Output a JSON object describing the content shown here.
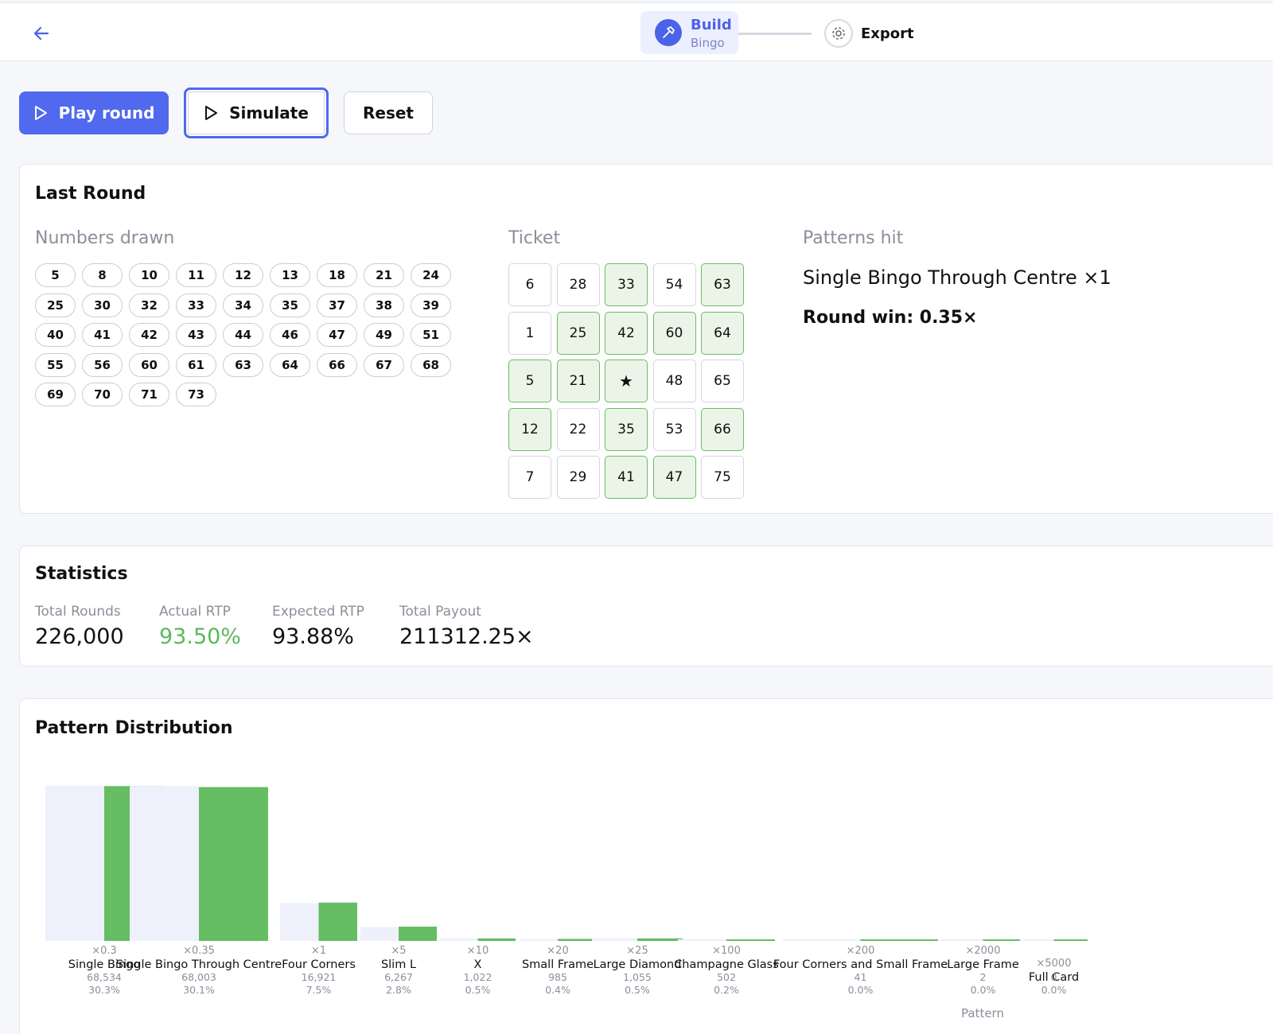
{
  "header": {
    "steps": [
      {
        "label": "Build",
        "sub": "Bingo",
        "active": true,
        "icon": "hammer-icon"
      },
      {
        "label": "Export",
        "active": false,
        "icon": "gear-icon"
      }
    ]
  },
  "actions": {
    "play_label": "Play round",
    "simulate_label": "Simulate",
    "reset_label": "Reset"
  },
  "last_round": {
    "title": "Last Round",
    "numbers_label": "Numbers drawn",
    "numbers": [
      5,
      8,
      10,
      11,
      12,
      13,
      18,
      21,
      24,
      25,
      30,
      32,
      33,
      34,
      35,
      37,
      38,
      39,
      40,
      41,
      42,
      43,
      44,
      46,
      47,
      49,
      51,
      55,
      56,
      60,
      61,
      63,
      64,
      66,
      67,
      68,
      69,
      70,
      71,
      73
    ],
    "ticket_label": "Ticket",
    "ticket": [
      [
        {
          "v": "6",
          "hit": false
        },
        {
          "v": "28",
          "hit": false
        },
        {
          "v": "33",
          "hit": true
        },
        {
          "v": "54",
          "hit": false
        },
        {
          "v": "63",
          "hit": true
        }
      ],
      [
        {
          "v": "1",
          "hit": false
        },
        {
          "v": "25",
          "hit": true
        },
        {
          "v": "42",
          "hit": true
        },
        {
          "v": "60",
          "hit": true
        },
        {
          "v": "64",
          "hit": true
        }
      ],
      [
        {
          "v": "5",
          "hit": true
        },
        {
          "v": "21",
          "hit": true
        },
        {
          "v": "★",
          "hit": true
        },
        {
          "v": "48",
          "hit": false
        },
        {
          "v": "65",
          "hit": false
        }
      ],
      [
        {
          "v": "12",
          "hit": true
        },
        {
          "v": "22",
          "hit": false
        },
        {
          "v": "35",
          "hit": true
        },
        {
          "v": "53",
          "hit": false
        },
        {
          "v": "66",
          "hit": true
        }
      ],
      [
        {
          "v": "7",
          "hit": false
        },
        {
          "v": "29",
          "hit": false
        },
        {
          "v": "41",
          "hit": true
        },
        {
          "v": "47",
          "hit": true
        },
        {
          "v": "75",
          "hit": false
        }
      ]
    ],
    "patterns_label": "Patterns hit",
    "pattern_hit": "Single Bingo Through Centre ×1",
    "round_win": "Round win: 0.35×"
  },
  "statistics": {
    "title": "Statistics",
    "items": [
      {
        "label": "Total Rounds",
        "value": "226,000",
        "highlight": false
      },
      {
        "label": "Actual RTP",
        "value": "93.50%",
        "highlight": true
      },
      {
        "label": "Expected RTP",
        "value": "93.88%",
        "highlight": false
      },
      {
        "label": "Total Payout",
        "value": "211312.25×",
        "highlight": false
      }
    ]
  },
  "distribution": {
    "title": "Pattern Distribution",
    "colors": {
      "expected": "#eef0fb",
      "actual": "#66bd63"
    }
  },
  "chart_data": {
    "type": "bar",
    "xlabel": "Pattern",
    "categories": [
      "Single Bingo",
      "Single Bingo Through Centre",
      "Four Corners",
      "Slim L",
      "X",
      "Small Frame",
      "Large Diamond",
      "Champagne Glass",
      "Four Corners and Small Frame",
      "Large Frame",
      "Full Card"
    ],
    "multipliers": [
      "×0.3",
      "×0.35",
      "×1",
      "×5",
      "×10",
      "×20",
      "×25",
      "×100",
      "×200",
      "×2000",
      "×5000"
    ],
    "counts": [
      "68,534",
      "68,003",
      "16,921",
      "6,267",
      "1,022",
      "985",
      "1,055",
      "502",
      "41",
      "2",
      "0"
    ],
    "percents": [
      "30.3%",
      "30.1%",
      "7.5%",
      "2.8%",
      "0.5%",
      "0.4%",
      "0.5%",
      "0.2%",
      "0.0%",
      "0.0%",
      "0.0%"
    ],
    "series": [
      {
        "values": [
          30.4,
          30.3,
          7.4,
          2.7,
          0.5,
          0.4,
          0.5,
          0.2,
          0.02,
          0.0,
          0.0
        ]
      },
      {
        "values": [
          30.3,
          30.1,
          7.5,
          2.8,
          0.5,
          0.4,
          0.5,
          0.2,
          0.0,
          0.0,
          0.0
        ]
      }
    ]
  }
}
